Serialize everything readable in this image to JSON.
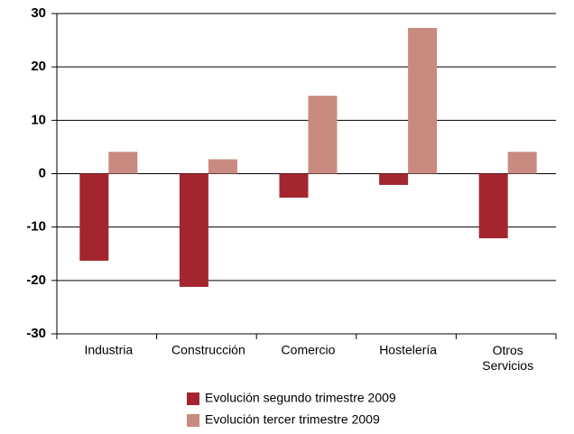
{
  "chart_data": {
    "type": "bar",
    "categories": [
      "Industria",
      "Construcción",
      "Comercio",
      "Hostelería",
      "Otros Servicios"
    ],
    "series": [
      {
        "name": "Evolución segundo trimestre 2009",
        "color": "#a3262f",
        "values": [
          -16.3,
          -21.2,
          -4.5,
          -2.1,
          -12.1
        ]
      },
      {
        "name": "Evolución tercer trimestre 2009",
        "color": "#c98a7f",
        "values": [
          4.1,
          2.7,
          14.6,
          27.3,
          4.1
        ]
      }
    ],
    "ylim": [
      -30,
      30
    ],
    "yticks": [
      -30,
      -20,
      -10,
      0,
      10,
      20,
      30
    ],
    "grid": true,
    "legend": "bottom"
  }
}
